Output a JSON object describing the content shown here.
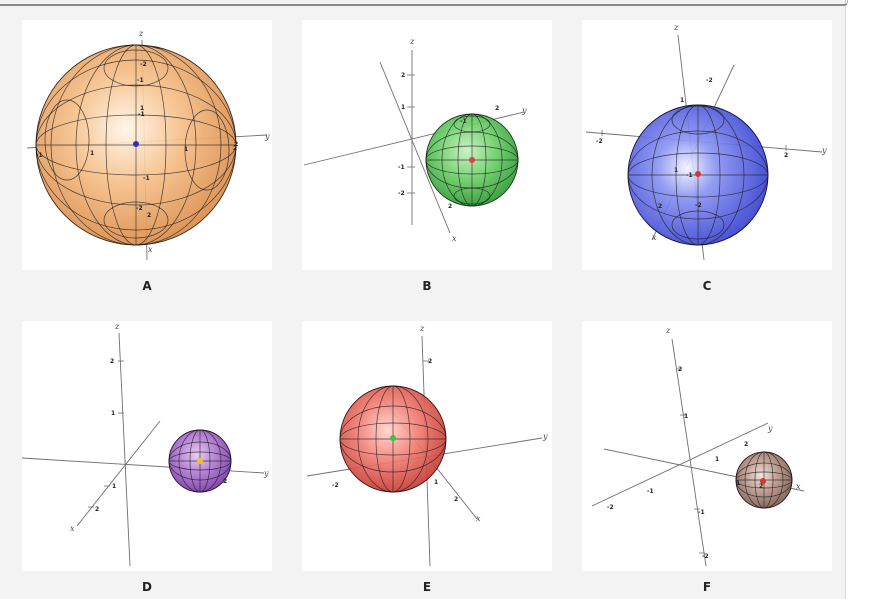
{
  "panels": [
    {
      "label": "A",
      "axis_labels": {
        "x": "x",
        "y": "y",
        "z": "z"
      },
      "tick_labels": [
        "-2",
        "-1",
        "1",
        "2",
        "-1",
        "1",
        "2",
        "1",
        "-2",
        "-1",
        "-1",
        "2"
      ],
      "sphere_color": "#f0a060",
      "center_point_color": "#3030c0"
    },
    {
      "label": "B",
      "axis_labels": {
        "x": "x",
        "y": "y",
        "z": "z"
      },
      "tick_labels": [
        "2",
        "1",
        "-1",
        "-2",
        "2",
        "2",
        "-1"
      ],
      "sphere_color": "#5ccc5c",
      "center_point_color": "#e04040"
    },
    {
      "label": "C",
      "axis_labels": {
        "x": "x",
        "y": "y",
        "z": "z"
      },
      "tick_labels": [
        "-2",
        "-2",
        "1",
        "2",
        "-1",
        "1",
        "-2",
        "2"
      ],
      "sphere_color": "#5060e8",
      "center_point_color": "#e03030"
    },
    {
      "label": "D",
      "axis_labels": {
        "x": "x",
        "y": "y",
        "z": "z"
      },
      "tick_labels": [
        "2",
        "1",
        "1",
        "2",
        "2"
      ],
      "sphere_color": "#a060c8",
      "center_point_color": "#f0c020"
    },
    {
      "label": "E",
      "axis_labels": {
        "x": "x",
        "y": "y",
        "z": "z"
      },
      "tick_labels": [
        "2",
        "-2",
        "1",
        "2"
      ],
      "sphere_color": "#ee6a62",
      "center_point_color": "#40c040"
    },
    {
      "label": "F",
      "axis_labels": {
        "x": "x",
        "y": "y",
        "z": "z"
      },
      "tick_labels": [
        "2",
        "1",
        "2",
        "1",
        "1",
        "-1",
        "-2",
        "-1",
        "-2",
        "2"
      ],
      "sphere_color": "#b08a80",
      "center_point_color": "#e03030"
    }
  ]
}
